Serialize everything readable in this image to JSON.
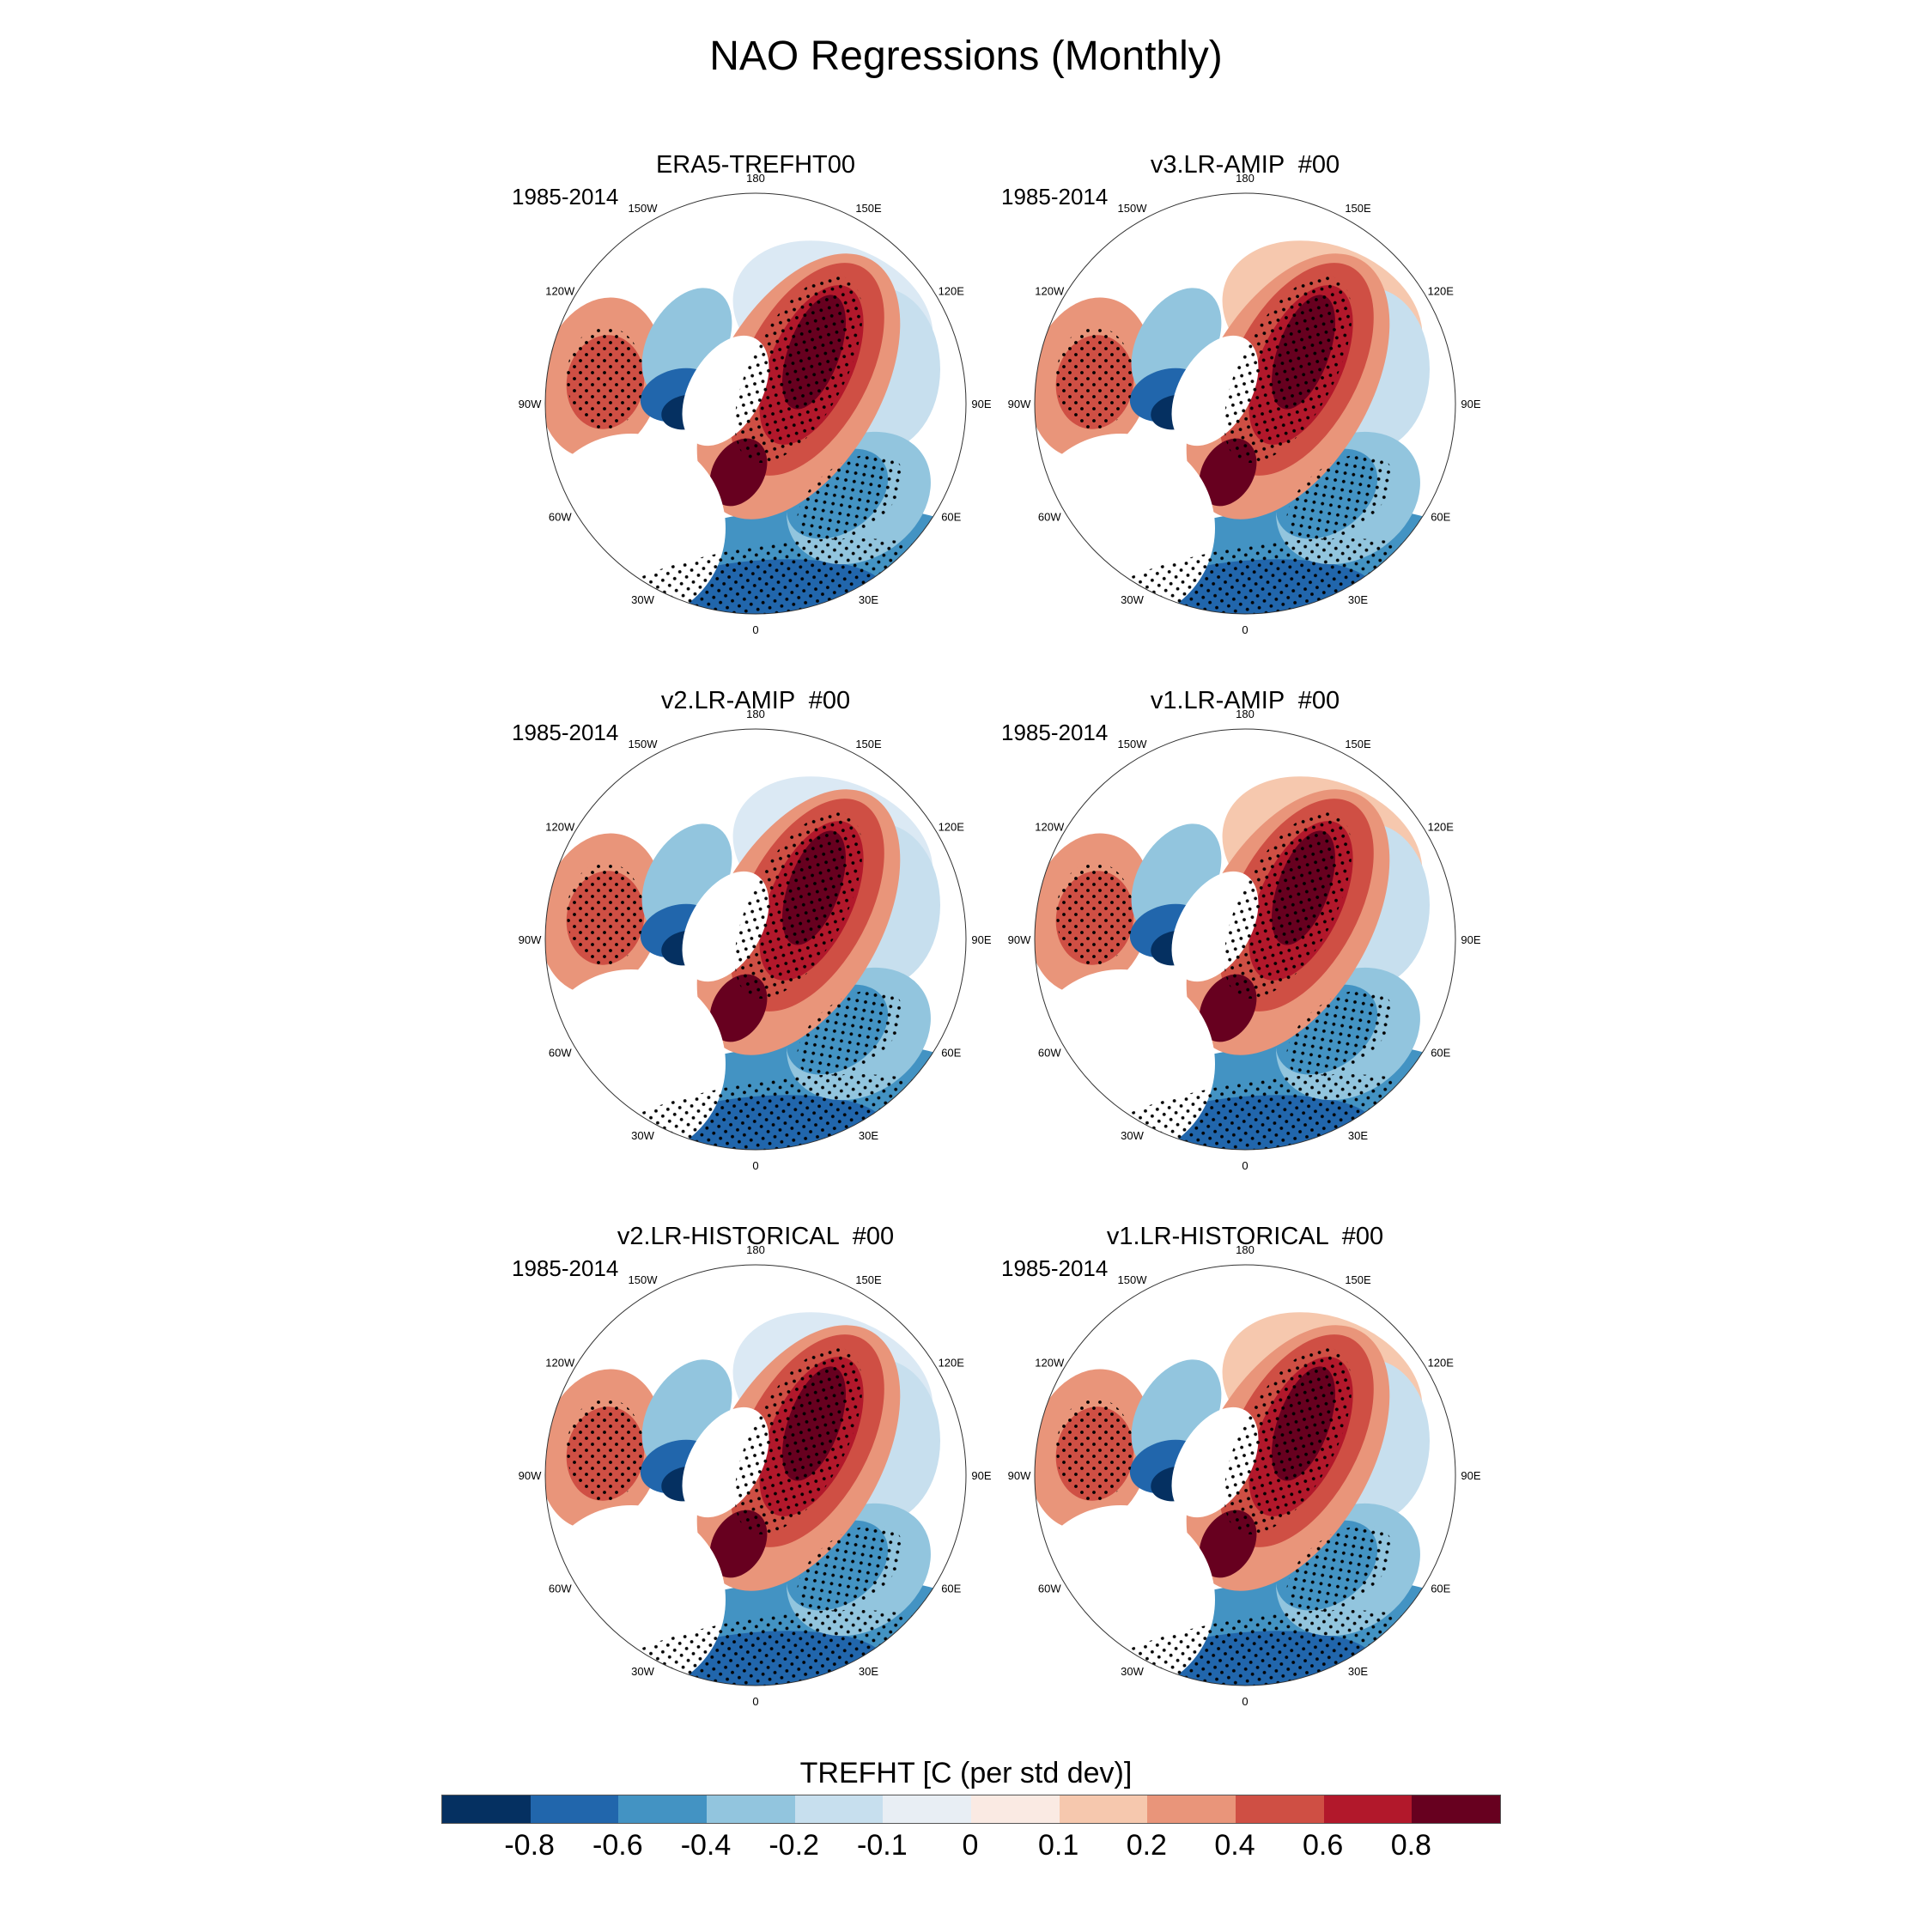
{
  "figure": {
    "title": "NAO Regressions (Monthly)"
  },
  "chart_data": {
    "type": "map",
    "projection": "north-polar-stereographic",
    "variable_label": "TREFHT [C (per std dev)]",
    "stippling": "significance dots",
    "longitude_labels": [
      "180",
      "150E",
      "120E",
      "90E",
      "60E",
      "30E",
      "0",
      "30W",
      "60W",
      "90W",
      "120W",
      "150W"
    ],
    "panels": [
      {
        "title": "ERA5-TREFHT00",
        "period": "1985-2014"
      },
      {
        "title": "v3.LR-AMIP  #00",
        "period": "1985-2014"
      },
      {
        "title": "v2.LR-AMIP  #00",
        "period": "1985-2014"
      },
      {
        "title": "v1.LR-AMIP  #00",
        "period": "1985-2014"
      },
      {
        "title": "v2.LR-HISTORICAL  #00",
        "period": "1985-2014"
      },
      {
        "title": "v1.LR-HISTORICAL  #00",
        "period": "1985-2014"
      }
    ],
    "colorbar": {
      "colors": [
        "#053061",
        "#2166ac",
        "#4393c3",
        "#92c5de",
        "#c7dfee",
        "#e8eef4",
        "#faeae3",
        "#f6c8ae",
        "#e9957a",
        "#cf4f44",
        "#b2182b",
        "#67001f"
      ],
      "tick_labels": [
        "-0.8",
        "-0.6",
        "-0.4",
        "-0.2",
        "-0.1",
        "0",
        "0.1",
        "0.2",
        "0.4",
        "0.6",
        "0.8"
      ]
    }
  }
}
